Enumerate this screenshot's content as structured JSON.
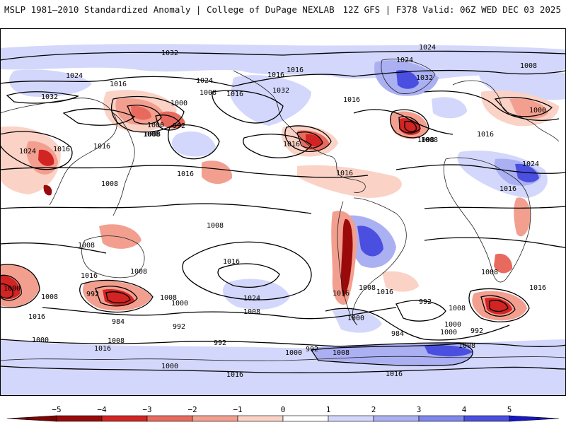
{
  "header": {
    "left_title": "MSLP 1981–2010 Standardized Anomaly | College of DuPage NEXLAB",
    "right_title": "12Z GFS | F378 Valid: 06Z WED DEC 03 2025"
  },
  "colors": {
    "neg5": "#9b0a0a",
    "neg4": "#d32424",
    "neg3": "#e86a5e",
    "neg2": "#f39f8f",
    "neg1": "#fbd2c6",
    "zero": "#ffffff",
    "pos1": "#d3d7fb",
    "pos2": "#aab0f2",
    "pos3": "#7f86ec",
    "pos4": "#4a4fe0",
    "pos5": "#1717c4"
  },
  "colorbar": {
    "ticks": [
      "−5",
      "−4",
      "−3",
      "−2",
      "−1",
      "0",
      "1",
      "2",
      "3",
      "4",
      "5"
    ]
  },
  "isobar_labels": [
    "1032",
    "1024",
    "1024",
    "1016",
    "1024",
    "1032",
    "1008",
    "1024",
    "1016",
    "1016",
    "1032",
    "1016",
    "1016",
    "1016",
    "1008",
    "1008",
    "1008",
    "1032",
    "1000",
    "992",
    "1000",
    "1008",
    "1000",
    "1024",
    "1016",
    "1008",
    "1016",
    "1008",
    "1024",
    "1016",
    "1016",
    "1008",
    "1008",
    "1008",
    "1016",
    "1016",
    "1008",
    "1016",
    "1000",
    "1008",
    "992",
    "1016",
    "1024",
    "1016",
    "1008",
    "1016",
    "1016",
    "1000",
    "984",
    "992",
    "1000",
    "1008",
    "992",
    "984",
    "1008",
    "1016",
    "1000",
    "1016",
    "1008",
    "992",
    "1000",
    "1008",
    "992",
    "1000",
    "1008",
    "1000",
    "992",
    "1008",
    "1000",
    "1016",
    "1016"
  ]
}
